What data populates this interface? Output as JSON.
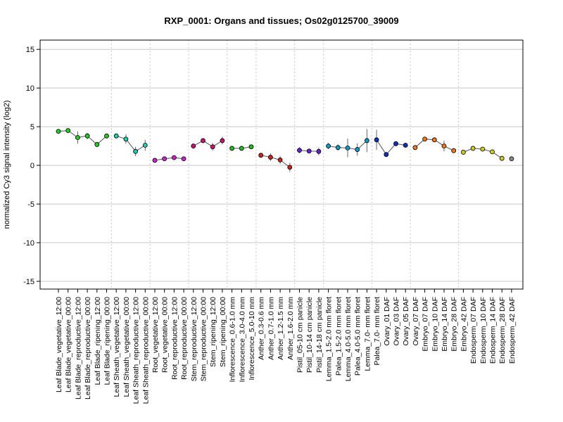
{
  "chart_data": {
    "type": "line",
    "title": "RXP_0001: Organs and tissues; Os02g0125700_39009",
    "ylabel": "normalized Cy3 signal intensity (log2)",
    "xlabel": "",
    "ylim": [
      -16,
      16.2
    ],
    "yticks": [
      -15,
      -10,
      -5,
      0,
      5,
      10,
      15
    ],
    "grid": {
      "horizontal": true,
      "vertical_dotted_at_group_boundaries": true
    },
    "line_color": "#555555",
    "groups": [
      {
        "start": 0,
        "end": 5,
        "color": "#22cc22"
      },
      {
        "start": 6,
        "end": 9,
        "color": "#22ccaa"
      },
      {
        "start": 10,
        "end": 13,
        "color": "#cc22cc"
      },
      {
        "start": 14,
        "end": 17,
        "color": "#cc1177"
      },
      {
        "start": 18,
        "end": 20,
        "color": "#22bb22"
      },
      {
        "start": 21,
        "end": 24,
        "color": "#cc2222"
      },
      {
        "start": 25,
        "end": 27,
        "color": "#6622cc"
      },
      {
        "start": 28,
        "end": 32,
        "color": "#1199cc"
      },
      {
        "start": 33,
        "end": 36,
        "color": "#1133bb"
      },
      {
        "start": 37,
        "end": 41,
        "color": "#ee7722"
      },
      {
        "start": 42,
        "end": 46,
        "color": "#cccc22"
      }
    ],
    "categories": [
      "Leaf Blade_vegetative_12:00",
      "Leaf Blade_vegetative_00:00",
      "Leaf Blade_reproductive_12:00",
      "Leaf Blade_reproductive_00:00",
      "Leaf Blade_ripening_12:00",
      "Leaf Blade_ripening_00:00",
      "Leaf Sheath_vegetative_12:00",
      "Leaf Sheath_vegetative_00:00",
      "Leaf Sheath_reproductive_12:00",
      "Leaf Sheath_reproductive_00:00",
      "Root_vegetative_12:00",
      "Root_vegetative_00:00",
      "Root_reproductive_12:00",
      "Root_reproductive_00:00",
      "Stem_reproductive_12:00",
      "Stem_reproductive_00:00",
      "Stem_ripening_12:00",
      "Stem_ripening_00:00",
      "Inflorescence_0.6-1.0 mm",
      "Inflorescence_3.0-4.0 mm",
      "Inflorescence_5.0-10 mm",
      "Anther_0.3-0.6 mm",
      "Anther_0.7-1.0 mm",
      "Anther_1.2-1.5 mm",
      "Anther_1.6-2.0 mm",
      "Pistil_05-10 cm panicle",
      "Pistil_10-14 cm panicle",
      "Pistil_14-18 cm panicle",
      "Lemma_1.5-2.0 mm floret",
      "Palea_1.5-2.0 mm floret",
      "Lemma_4.0-5.0 mm floret",
      "Palea_4.0-5.0 mm floret",
      "Lemma_7.0- mm floret",
      "Palea_7.0- mm floret",
      "Ovary_01 DAF",
      "Ovary_03 DAF",
      "Ovary_05 DAF",
      "Ovary_07 DAF",
      "Embryo_07 DAF",
      "Embryo_10 DAF",
      "Embryo_14 DAF",
      "Embryo_28 DAF",
      "Embryo_42 DAF",
      "Endosperm_07 DAF",
      "Endosperm_10 DAF",
      "Endosperm_14 DAF",
      "Endosperm_28 DAF",
      "Endosperm_42 DAF"
    ],
    "values": [
      4.4,
      4.5,
      3.6,
      3.8,
      2.7,
      3.8,
      3.8,
      3.4,
      1.8,
      2.6,
      0.65,
      0.85,
      1.0,
      0.85,
      2.5,
      3.2,
      2.4,
      3.2,
      2.2,
      2.2,
      2.4,
      1.3,
      1.05,
      0.7,
      -0.25,
      1.95,
      1.85,
      1.8,
      2.5,
      2.3,
      2.25,
      2.05,
      3.2,
      3.3,
      1.4,
      2.8,
      2.6,
      2.3,
      3.4,
      3.3,
      2.5,
      1.9,
      1.7,
      2.2,
      2.1,
      1.75,
      0.9,
      0.85
    ],
    "errors": [
      0.15,
      0.3,
      0.8,
      0.4,
      0.2,
      0.2,
      0.2,
      0.6,
      0.6,
      0.7,
      0.25,
      0.3,
      0.2,
      0.3,
      0.35,
      0.3,
      0.5,
      0.5,
      0.2,
      0.2,
      0.2,
      0.3,
      0.5,
      0.5,
      0.6,
      0.4,
      0.3,
      0.5,
      0.4,
      0.4,
      1.2,
      0.8,
      1.5,
      1.3,
      0.3,
      0.3,
      0.3,
      0.3,
      0.3,
      0.3,
      0.7,
      0.3,
      0.3,
      0.2,
      0.2,
      0.3,
      0.2,
      0.2
    ]
  }
}
